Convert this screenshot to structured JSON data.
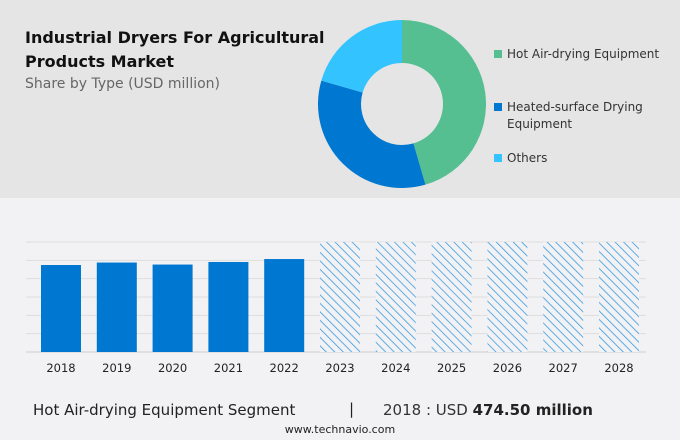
{
  "chart_data": [
    {
      "type": "pie",
      "variant": "donut",
      "title": "Industrial Dryers For Agricultural Products Market",
      "subtitle": "Share by Type (USD million)",
      "legend_position": "right",
      "slices": [
        {
          "label": "Hot Air-drying Equipment",
          "value": 45.5,
          "color": "#55bf92"
        },
        {
          "label": "Heated-surface Drying Equipment",
          "value": 34,
          "color": "#0077d0"
        },
        {
          "label": "Others",
          "value": 20.5,
          "color": "#33c4ff"
        }
      ]
    },
    {
      "type": "bar",
      "categories": [
        "2018",
        "2019",
        "2020",
        "2021",
        "2022",
        "2023",
        "2024",
        "2025",
        "2026",
        "2027",
        "2028"
      ],
      "values": [
        474.5,
        488,
        477,
        491,
        507,
        null,
        null,
        null,
        null,
        null,
        null
      ],
      "forecast_from": "2023",
      "bar_color": "#0077d0",
      "forecast_style": "hatched",
      "ylim": [
        0,
        600
      ],
      "grid": true,
      "xlabel": "",
      "ylabel": ""
    }
  ],
  "footer": {
    "segment": "Hot Air-drying Equipment Segment",
    "separator": "|",
    "value_prefix": "2018 : USD ",
    "value": "474.50 million",
    "source": "www.technavio.com"
  }
}
